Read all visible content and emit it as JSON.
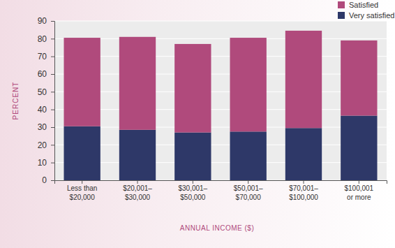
{
  "chart_data": {
    "type": "bar",
    "stacked": true,
    "grid": true,
    "legend": "top-right",
    "x_label": "ANNUAL INCOME ($)",
    "y_label": "PERCENT",
    "categories": [
      "Less than\n$20,000",
      "$20,001–\n$30,000",
      "$30,001–\n$50,000",
      "$50,001–\n$70,000",
      "$70,001–\n$100,000",
      "$100,001\nor more"
    ],
    "series": [
      {
        "name": "Very satisfied",
        "color": "#2e3868",
        "values": [
          30.5,
          28.5,
          27,
          27.5,
          29.5,
          36.5
        ]
      },
      {
        "name": "Satisfied",
        "color": "#b04a7c",
        "values": [
          50,
          52.5,
          50,
          53,
          55,
          42.5
        ]
      }
    ],
    "ylim": [
      0,
      90
    ],
    "yticks": [
      0,
      10,
      20,
      30,
      40,
      50,
      60,
      70,
      80,
      90
    ]
  }
}
